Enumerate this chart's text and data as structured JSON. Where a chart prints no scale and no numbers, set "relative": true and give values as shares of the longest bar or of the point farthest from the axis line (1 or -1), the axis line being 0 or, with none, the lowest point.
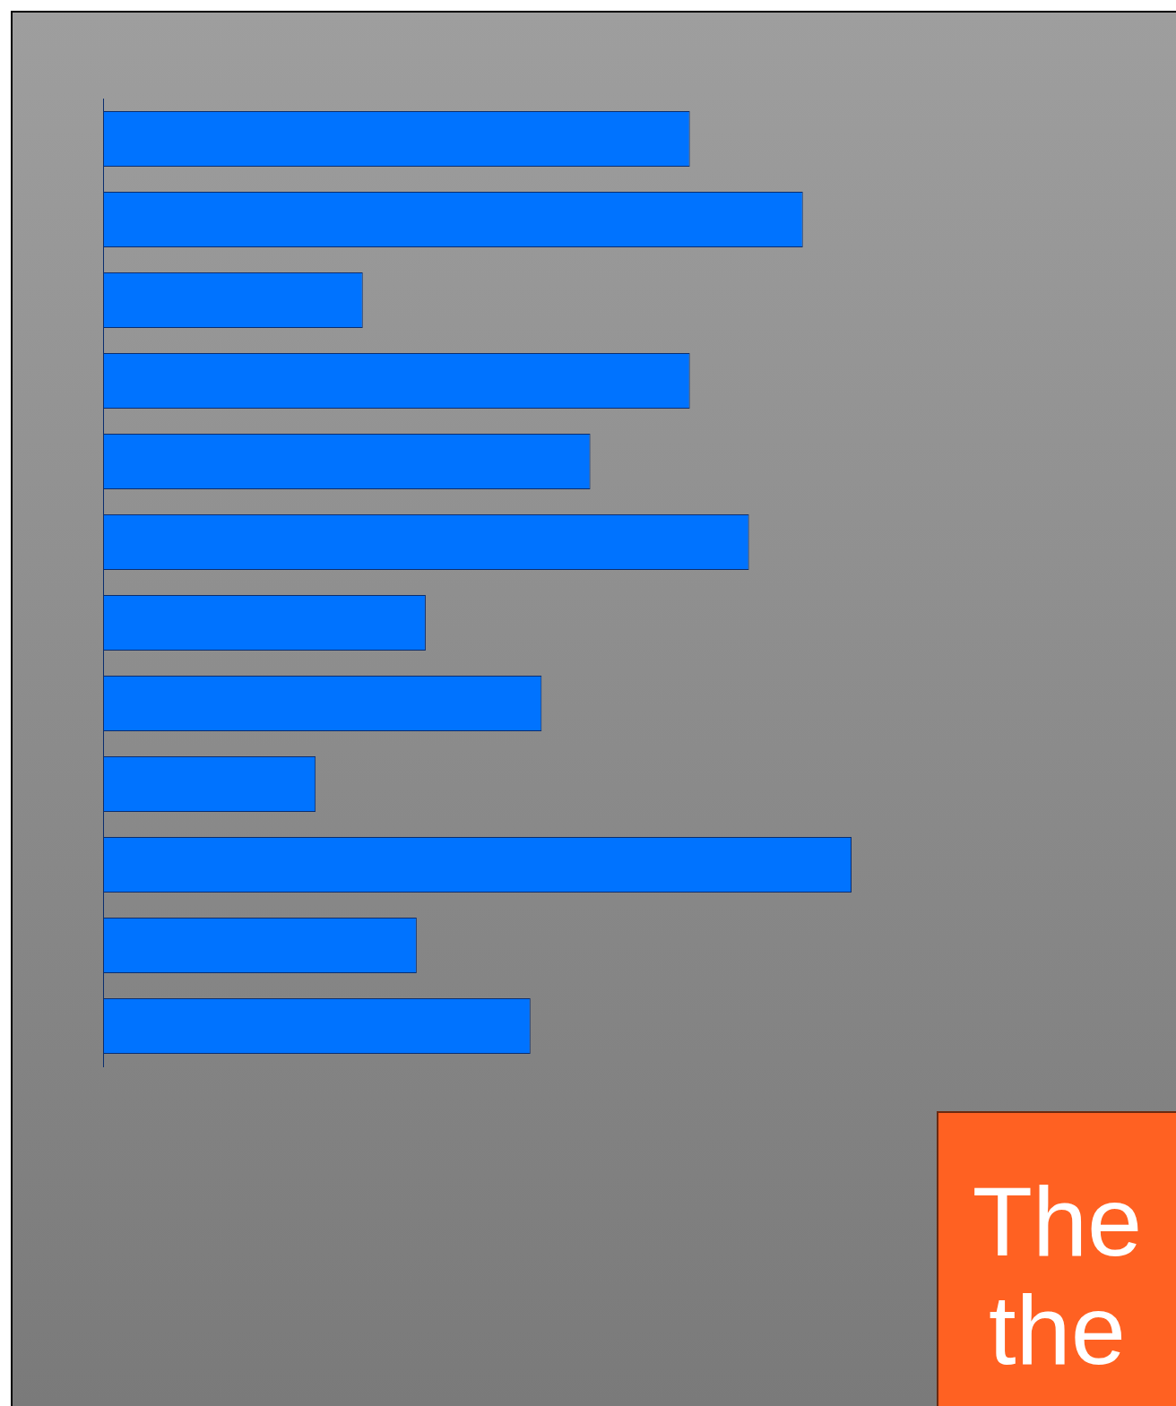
{
  "chart_data": {
    "type": "bar",
    "orientation": "horizontal",
    "relative": true,
    "categories": [
      null,
      null,
      null,
      null,
      null,
      null,
      null,
      null,
      null,
      null,
      null,
      null
    ],
    "values": [
      0.784,
      0.935,
      0.347,
      0.784,
      0.651,
      0.863,
      0.431,
      0.586,
      0.284,
      1,
      0.419,
      0.571
    ],
    "color": "#0073ff",
    "annotations": [
      "The the"
    ]
  }
}
